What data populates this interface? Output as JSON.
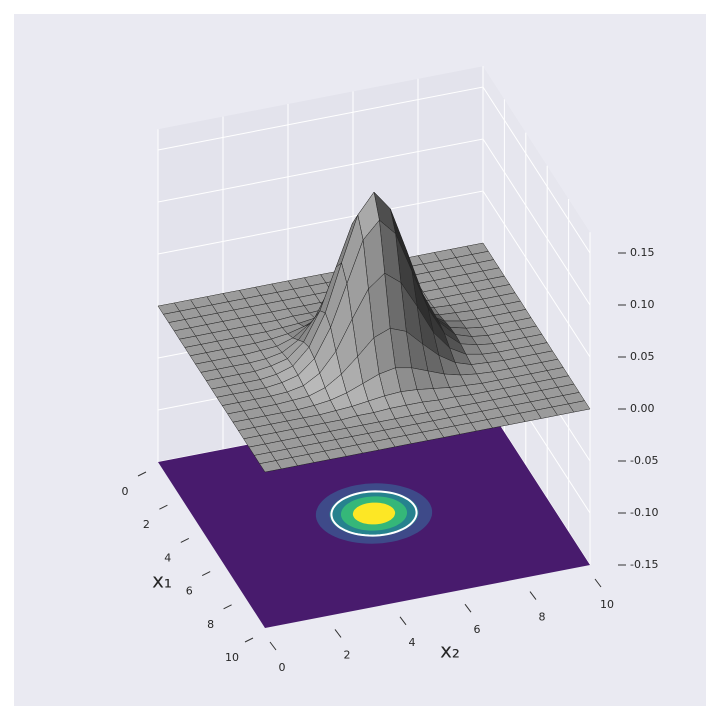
{
  "chart_data": {
    "type": "surface",
    "xlabel": "x₁",
    "ylabel": "x₂",
    "xlim": [
      0,
      10
    ],
    "ylim": [
      0,
      10
    ],
    "zlim": [
      -0.15,
      0.17
    ],
    "xticks": [
      0,
      2,
      4,
      6,
      8,
      10
    ],
    "yticks": [
      0,
      2,
      4,
      6,
      8,
      10
    ],
    "zticks": [
      -0.15,
      {
        "value": -0.1,
        "label": "-0.10"
      },
      -0.05,
      {
        "value": 0,
        "label": "0.00"
      },
      0.05,
      {
        "value": 0.1,
        "label": "0.10"
      },
      0.15
    ],
    "x1": [
      0,
      0.5,
      1,
      1.5,
      2,
      2.5,
      3,
      3.5,
      4,
      4.5,
      5,
      5.5,
      6,
      6.5,
      7,
      7.5,
      8,
      8.5,
      9,
      9.5,
      10
    ],
    "x2": [
      0,
      0.5,
      1,
      1.5,
      2,
      2.5,
      3,
      3.5,
      4,
      4.5,
      5,
      5.5,
      6,
      6.5,
      7,
      7.5,
      8,
      8.5,
      9,
      9.5,
      10
    ],
    "z": [
      [
        0,
        0,
        0,
        0,
        0,
        0,
        0,
        0,
        0,
        0,
        0,
        0,
        0,
        0,
        0,
        0,
        0,
        0,
        0,
        0,
        0
      ],
      [
        0,
        0,
        0,
        0,
        0,
        0,
        0,
        0,
        0,
        0,
        0,
        0,
        0,
        0,
        0,
        0,
        0,
        0,
        0,
        0,
        0
      ],
      [
        0,
        0,
        0,
        0,
        0,
        0,
        0,
        0,
        0,
        0,
        0,
        0,
        0,
        0,
        0,
        0,
        0,
        0,
        0,
        0,
        0
      ],
      [
        0,
        0,
        0,
        0,
        0,
        0,
        0,
        0,
        0,
        0,
        0,
        0,
        0,
        0,
        0,
        0,
        0,
        0,
        0,
        0,
        0
      ],
      [
        0,
        0,
        0,
        0,
        0,
        0,
        0,
        0.001,
        0.001,
        0.002,
        0.002,
        0.002,
        0.001,
        0.001,
        0,
        0,
        0,
        0,
        0,
        0,
        0
      ],
      [
        0,
        0,
        0,
        0,
        0,
        0,
        0.001,
        0.002,
        0.004,
        0.006,
        0.007,
        0.006,
        0.004,
        0.002,
        0.001,
        0,
        0,
        0,
        0,
        0,
        0
      ],
      [
        0,
        0,
        0,
        0,
        0,
        0.001,
        0.003,
        0.007,
        0.013,
        0.019,
        0.022,
        0.019,
        0.013,
        0.007,
        0.003,
        0.001,
        0,
        0,
        0,
        0,
        0
      ],
      [
        0,
        0,
        0,
        0,
        0.001,
        0.002,
        0.007,
        0.017,
        0.031,
        0.046,
        0.052,
        0.046,
        0.031,
        0.017,
        0.007,
        0.002,
        0.001,
        0,
        0,
        0,
        0
      ],
      [
        0,
        0,
        0,
        0,
        0.001,
        0.004,
        0.013,
        0.031,
        0.059,
        0.085,
        0.097,
        0.085,
        0.059,
        0.031,
        0.013,
        0.004,
        0.001,
        0,
        0,
        0,
        0
      ],
      [
        0,
        0,
        0,
        0,
        0.002,
        0.006,
        0.019,
        0.046,
        0.085,
        0.124,
        0.14,
        0.124,
        0.085,
        0.046,
        0.019,
        0.006,
        0.002,
        0,
        0,
        0,
        0
      ],
      [
        0,
        0,
        0,
        0,
        0.002,
        0.007,
        0.022,
        0.052,
        0.097,
        0.14,
        0.159,
        0.14,
        0.097,
        0.052,
        0.022,
        0.007,
        0.002,
        0,
        0,
        0,
        0
      ],
      [
        0,
        0,
        0,
        0,
        0.002,
        0.006,
        0.019,
        0.046,
        0.085,
        0.124,
        0.14,
        0.124,
        0.085,
        0.046,
        0.019,
        0.006,
        0.002,
        0,
        0,
        0,
        0
      ],
      [
        0,
        0,
        0,
        0,
        0.001,
        0.004,
        0.013,
        0.031,
        0.059,
        0.085,
        0.097,
        0.085,
        0.059,
        0.031,
        0.013,
        0.004,
        0.001,
        0,
        0,
        0,
        0
      ],
      [
        0,
        0,
        0,
        0,
        0.001,
        0.002,
        0.007,
        0.017,
        0.031,
        0.046,
        0.052,
        0.046,
        0.031,
        0.017,
        0.007,
        0.002,
        0.001,
        0,
        0,
        0,
        0
      ],
      [
        0,
        0,
        0,
        0,
        0,
        0.001,
        0.003,
        0.007,
        0.013,
        0.019,
        0.022,
        0.019,
        0.013,
        0.007,
        0.003,
        0.001,
        0,
        0,
        0,
        0,
        0
      ],
      [
        0,
        0,
        0,
        0,
        0,
        0,
        0.001,
        0.002,
        0.004,
        0.006,
        0.007,
        0.006,
        0.004,
        0.002,
        0.001,
        0,
        0,
        0,
        0,
        0,
        0
      ],
      [
        0,
        0,
        0,
        0,
        0,
        0,
        0,
        0.001,
        0.001,
        0.002,
        0.002,
        0.002,
        0.001,
        0.001,
        0,
        0,
        0,
        0,
        0,
        0,
        0
      ],
      [
        0,
        0,
        0,
        0,
        0,
        0,
        0,
        0,
        0,
        0,
        0,
        0,
        0,
        0,
        0,
        0,
        0,
        0,
        0,
        0,
        0
      ],
      [
        0,
        0,
        0,
        0,
        0,
        0,
        0,
        0,
        0,
        0,
        0,
        0,
        0,
        0,
        0,
        0,
        0,
        0,
        0,
        0,
        0
      ],
      [
        0,
        0,
        0,
        0,
        0,
        0,
        0,
        0,
        0,
        0,
        0,
        0,
        0,
        0,
        0,
        0,
        0,
        0,
        0,
        0,
        0
      ],
      [
        0,
        0,
        0,
        0,
        0,
        0,
        0,
        0,
        0,
        0,
        0,
        0,
        0,
        0,
        0,
        0,
        0,
        0,
        0,
        0,
        0
      ]
    ],
    "surface_color": "#a8a8a8",
    "edge_color": "#222222",
    "contour": {
      "levels": [
        0.04,
        0.07,
        0.1,
        0.13
      ],
      "colors": [
        "#481b6d",
        "#3e4a89",
        "#26828e",
        "#35b779",
        "#fde725"
      ],
      "line_level": 0.075,
      "line_color": "#ffffff"
    }
  }
}
